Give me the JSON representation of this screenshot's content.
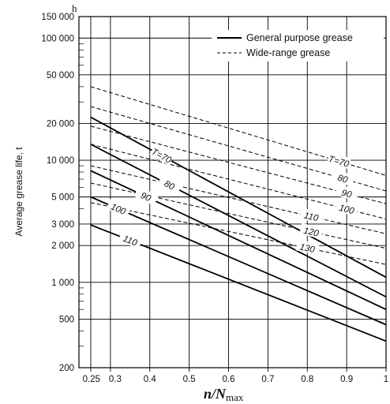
{
  "chart_data": {
    "type": "line",
    "ylabel": "Average grease life, t",
    "y_unit": "h",
    "xlabel_main": "n/N",
    "xlabel_sub": "max",
    "y_scale": "log",
    "ylim": [
      200,
      150000
    ],
    "xlim": [
      0.22,
      1.0
    ],
    "grid": true,
    "legend_position": "top-right",
    "y_ticks": [
      {
        "value": 150000,
        "label": "150 000"
      },
      {
        "value": 100000,
        "label": "100 000"
      },
      {
        "value": 50000,
        "label": "50 000"
      },
      {
        "value": 20000,
        "label": "20 000"
      },
      {
        "value": 10000,
        "label": "10 000"
      },
      {
        "value": 5000,
        "label": "5 000"
      },
      {
        "value": 3000,
        "label": "3 000"
      },
      {
        "value": 2000,
        "label": "2 000"
      },
      {
        "value": 1000,
        "label": "1 000"
      },
      {
        "value": 500,
        "label": "500"
      },
      {
        "value": 200,
        "label": "200"
      }
    ],
    "x_ticks": [
      {
        "value": 0.25,
        "label": "0.25"
      },
      {
        "value": 0.3,
        "label": "0.3"
      },
      {
        "value": 0.4,
        "label": "0.4"
      },
      {
        "value": 0.5,
        "label": "0.5"
      },
      {
        "value": 0.6,
        "label": "0.6"
      },
      {
        "value": 0.7,
        "label": "0.7"
      },
      {
        "value": 0.8,
        "label": "0.8"
      },
      {
        "value": 0.9,
        "label": "0.9"
      },
      {
        "value": 1.0,
        "label": "1"
      }
    ],
    "legend": [
      {
        "name": "General purpose grease",
        "style": "solid"
      },
      {
        "name": "Wide-range grease",
        "style": "dashed"
      }
    ],
    "series": [
      {
        "group": "General purpose grease",
        "style": "solid",
        "label": "T=70",
        "x": [
          0.25,
          1.0
        ],
        "y": [
          22500,
          1100
        ]
      },
      {
        "group": "General purpose grease",
        "style": "solid",
        "label": "80",
        "x": [
          0.25,
          1.0
        ],
        "y": [
          13500,
          760
        ]
      },
      {
        "group": "General purpose grease",
        "style": "solid",
        "label": "90",
        "x": [
          0.25,
          1.0
        ],
        "y": [
          8200,
          600
        ]
      },
      {
        "group": "General purpose grease",
        "style": "solid",
        "label": "100",
        "x": [
          0.25,
          1.0
        ],
        "y": [
          5000,
          450
        ]
      },
      {
        "group": "General purpose grease",
        "style": "solid",
        "label": "110",
        "x": [
          0.25,
          1.0
        ],
        "y": [
          2950,
          330
        ]
      },
      {
        "group": "Wide-range grease",
        "style": "dashed",
        "label": "T=70",
        "x": [
          0.25,
          1.0
        ],
        "y": [
          40000,
          7500
        ]
      },
      {
        "group": "Wide-range grease",
        "style": "dashed",
        "label": "80",
        "x": [
          0.25,
          1.0
        ],
        "y": [
          27500,
          5600
        ]
      },
      {
        "group": "Wide-range grease",
        "style": "dashed",
        "label": "90",
        "x": [
          0.25,
          1.0
        ],
        "y": [
          19000,
          4400
        ]
      },
      {
        "group": "Wide-range grease",
        "style": "dashed",
        "label": "100",
        "x": [
          0.25,
          1.0
        ],
        "y": [
          13500,
          3300
        ]
      },
      {
        "group": "Wide-range grease",
        "style": "dashed",
        "label": "110",
        "x": [
          0.25,
          1.0
        ],
        "y": [
          9000,
          2500
        ]
      },
      {
        "group": "Wide-range grease",
        "style": "dashed",
        "label": "120",
        "x": [
          0.25,
          1.0
        ],
        "y": [
          6500,
          1900
        ]
      },
      {
        "group": "Wide-range grease",
        "style": "dashed",
        "label": "130",
        "x": [
          0.25,
          1.0
        ],
        "y": [
          4500,
          1400
        ]
      }
    ]
  }
}
